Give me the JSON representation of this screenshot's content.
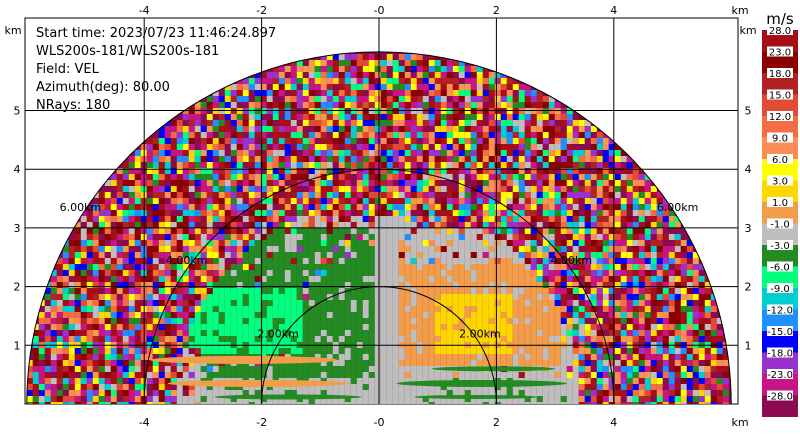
{
  "info": {
    "start_time": "Start time: 2023/07/23 11:46:24.897",
    "instrument": "WLS200s-181/WLS200s-181",
    "field": "Field: VEL",
    "azimuth": "Azimuth(deg): 80.00",
    "nrays": "NRays: 180"
  },
  "chart_data": {
    "type": "heatmap",
    "projection": "RHI half-disc",
    "x_unit": "km",
    "y_unit": "km",
    "x_ticks": [
      "-4",
      "-2",
      "-0",
      "2",
      "4"
    ],
    "y_ticks": [
      "1",
      "2",
      "3",
      "4",
      "5"
    ],
    "xlim": [
      -6,
      6
    ],
    "ylim": [
      0,
      6
    ],
    "max_range_km": 6,
    "range_rings": [
      {
        "r": 2,
        "left": "2.00km",
        "right": "2.00km"
      },
      {
        "r": 4,
        "left": "4.00km",
        "right": "4.00km"
      },
      {
        "r": 6,
        "left": "6.00km",
        "right": "6.00km"
      }
    ],
    "colorbar": {
      "unit": "m/s",
      "levels": [
        "28.0",
        "23.0",
        "18.0",
        "15.0",
        "12.0",
        "9.0",
        "6.0",
        "3.0",
        "1.0",
        "-1.0",
        "-3.0",
        "-6.0",
        "-9.0",
        "-12.0",
        "-15.0",
        "-18.0",
        "-23.0",
        "-28.0"
      ],
      "colors": [
        "#a50f15",
        "#8b0000",
        "#b22222",
        "#e34a33",
        "#f46d43",
        "#fc8d59",
        "#ffff00",
        "#ffd700",
        "#f29d49",
        "#bebebe",
        "#228b22",
        "#00ff7f",
        "#00ced1",
        "#1e90ff",
        "#0000ff",
        "#9932cc",
        "#c71585",
        "#8b0a50"
      ]
    },
    "regions": [
      {
        "name": "noise",
        "value": "mixed"
      },
      {
        "name": "near-zero",
        "value": 0
      },
      {
        "name": "approaching",
        "value": -3
      },
      {
        "name": "approaching-strong",
        "value": -6
      },
      {
        "name": "receding",
        "value": 3
      },
      {
        "name": "receding-strong",
        "value": 6
      }
    ]
  }
}
